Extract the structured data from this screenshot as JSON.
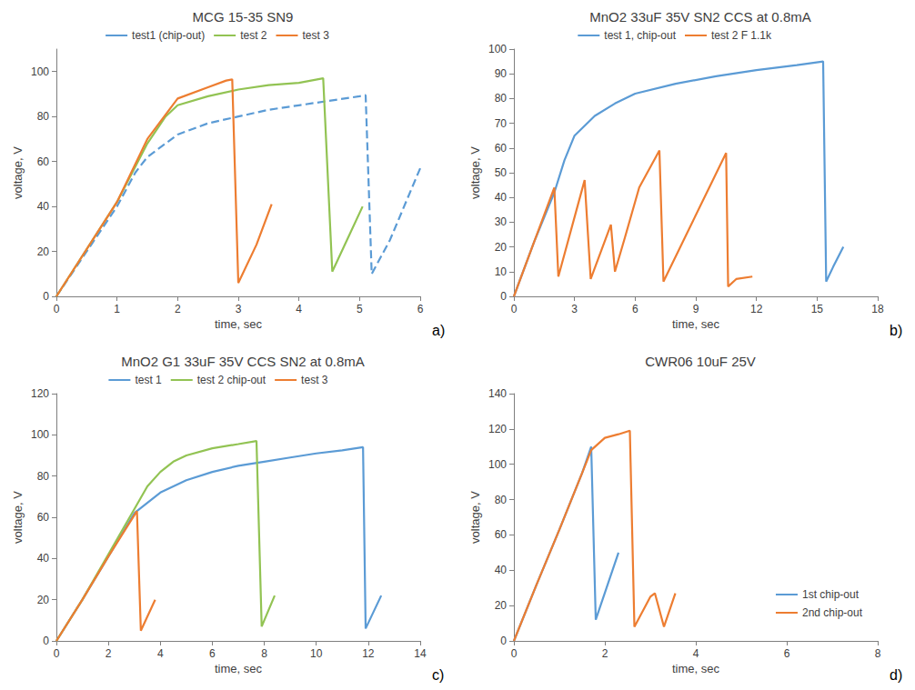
{
  "chart_data": [
    {
      "type": "line",
      "title": "MCG 15-35 SN9",
      "label": "a)",
      "x_label": "time, sec",
      "y_label": "voltage, V",
      "xlim": [
        0,
        6
      ],
      "xticks": [
        0,
        1,
        2,
        3,
        4,
        5,
        6
      ],
      "ylim": [
        0,
        110
      ],
      "yticks": [
        0,
        20,
        40,
        60,
        80,
        100
      ],
      "grid": false,
      "legend": "top",
      "series": [
        {
          "name": "test1 (chip-out)",
          "color": "#5b9bd5",
          "line_style": "dashed",
          "x": [
            0,
            1,
            1.3,
            1.5,
            2,
            2.5,
            3,
            3.5,
            4,
            4.5,
            5,
            5.1,
            5.2,
            5.5,
            6
          ],
          "values": [
            0,
            40,
            55,
            62,
            72,
            77,
            80,
            83,
            85,
            87,
            89,
            89.5,
            10,
            25,
            57
          ]
        },
        {
          "name": "test 2",
          "color": "#92c353",
          "line_style": "solid",
          "x": [
            0,
            1,
            1.5,
            1.8,
            2,
            2.5,
            3,
            3.5,
            4,
            4.4,
            4.55,
            5.05
          ],
          "values": [
            0,
            42,
            68,
            80,
            85,
            89,
            92,
            94,
            95,
            97,
            11,
            40
          ]
        },
        {
          "name": "test 3",
          "color": "#ed7d31",
          "line_style": "solid",
          "x": [
            0,
            1,
            1.5,
            2,
            2.5,
            2.8,
            2.9,
            3.0,
            3.3,
            3.55
          ],
          "values": [
            0,
            42,
            70,
            88,
            93,
            96,
            96.5,
            6,
            23,
            41
          ]
        }
      ]
    },
    {
      "type": "line",
      "title": "MnO2 33uF 35V SN2 CCS at 0.8mA",
      "label": "b)",
      "x_label": "time, sec",
      "y_label": "voltage, V",
      "xlim": [
        0,
        18
      ],
      "xticks": [
        0,
        3,
        6,
        9,
        12,
        15,
        18
      ],
      "ylim": [
        0,
        100
      ],
      "yticks": [
        0,
        10,
        20,
        30,
        40,
        50,
        60,
        70,
        80,
        90,
        100
      ],
      "grid": false,
      "legend": "top",
      "series": [
        {
          "name": "test 1, chip-out",
          "color": "#5b9bd5",
          "line_style": "solid",
          "x": [
            0,
            1,
            2,
            2.5,
            3,
            4,
            5,
            6,
            8,
            10,
            12,
            14,
            15.3,
            15.45,
            15.8,
            16.3
          ],
          "values": [
            0,
            22,
            42,
            55,
            65,
            73,
            78,
            82,
            86,
            89,
            91.5,
            93.5,
            95,
            6,
            12,
            20
          ]
        },
        {
          "name": "test 2 F 1.1k",
          "color": "#ed7d31",
          "line_style": "solid",
          "x": [
            0,
            2,
            2.2,
            3.5,
            3.8,
            4.8,
            5.0,
            5.5,
            6.2,
            7.2,
            7.4,
            10.5,
            10.6,
            11,
            11.8
          ],
          "values": [
            0,
            44,
            8,
            47,
            7,
            29,
            10,
            24,
            44,
            59,
            6,
            58,
            4,
            7,
            8
          ]
        }
      ]
    },
    {
      "type": "line",
      "title": "MnO2 G1 33uF 35V CCS SN2 at 0.8mA",
      "label": "c)",
      "x_label": "time, sec",
      "y_label": "voltage, V",
      "xlim": [
        0,
        14
      ],
      "xticks": [
        0,
        2,
        4,
        6,
        8,
        10,
        12,
        14
      ],
      "ylim": [
        0,
        120
      ],
      "yticks": [
        0,
        20,
        40,
        60,
        80,
        100,
        120
      ],
      "grid": false,
      "legend": "top",
      "series": [
        {
          "name": "test 1",
          "color": "#5b9bd5",
          "line_style": "solid",
          "x": [
            0,
            1,
            2,
            3,
            4,
            5,
            6,
            7,
            8,
            9,
            10,
            11,
            11.8,
            11.9,
            12.5
          ],
          "values": [
            0,
            20,
            41,
            62,
            72,
            78,
            82,
            85,
            87,
            89,
            91,
            92.5,
            94,
            6,
            22
          ]
        },
        {
          "name": "test 2 chip-out",
          "color": "#92c353",
          "line_style": "solid",
          "x": [
            0,
            1,
            2,
            3,
            3.5,
            4,
            4.5,
            5,
            6,
            7,
            7.7,
            7.9,
            8.4
          ],
          "values": [
            0,
            20,
            42,
            64,
            75,
            82,
            87,
            90,
            93.5,
            95.5,
            97,
            7,
            22
          ]
        },
        {
          "name": "test 3",
          "color": "#ed7d31",
          "line_style": "solid",
          "x": [
            0,
            1,
            2,
            3.1,
            3.25,
            3.8
          ],
          "values": [
            0,
            20,
            41,
            63,
            5,
            20
          ]
        }
      ]
    },
    {
      "type": "line",
      "title": "CWR06 10uF 25V",
      "label": "d)",
      "x_label": "time, sec",
      "y_label": "voltage, V",
      "xlim": [
        0,
        8
      ],
      "xticks": [
        0,
        2,
        4,
        6,
        8
      ],
      "ylim": [
        0,
        140
      ],
      "yticks": [
        0,
        20,
        40,
        60,
        80,
        100,
        120,
        140
      ],
      "grid": false,
      "legend": "lower right",
      "series": [
        {
          "name": "1st chip-out",
          "color": "#5b9bd5",
          "line_style": "solid",
          "x": [
            0,
            0.5,
            1,
            1.5,
            1.7,
            1.8,
            2.3
          ],
          "values": [
            0,
            32,
            63,
            95,
            110,
            12,
            50
          ]
        },
        {
          "name": "2nd chip-out",
          "color": "#ed7d31",
          "line_style": "solid",
          "x": [
            0,
            0.5,
            1,
            1.5,
            1.7,
            2,
            2.3,
            2.55,
            2.65,
            3.0,
            3.1,
            3.3,
            3.55
          ],
          "values": [
            0,
            32,
            63,
            95,
            108,
            115,
            117,
            119,
            8,
            25,
            27,
            8,
            27
          ]
        }
      ]
    }
  ]
}
